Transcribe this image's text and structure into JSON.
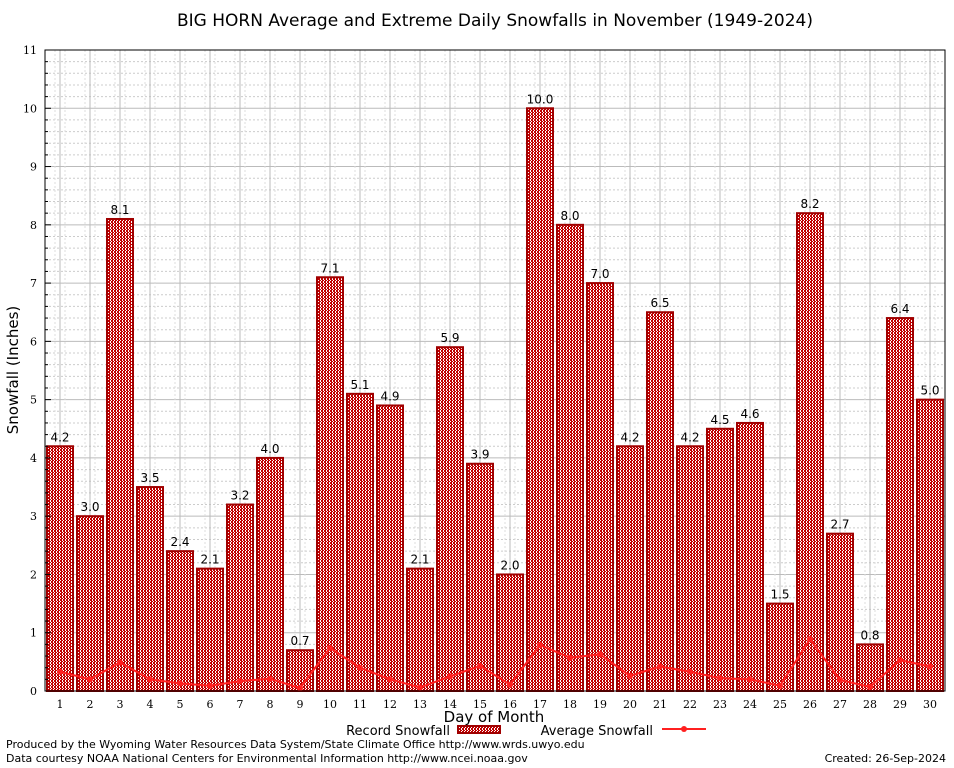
{
  "chart_data": {
    "type": "bar",
    "title": "BIG HORN Average and Extreme Daily Snowfalls in November (1949-2024)",
    "xlabel": "Day of Month",
    "ylabel": "Snowfall (Inches)",
    "ylim": [
      0,
      11
    ],
    "yticks": [
      "0",
      "1",
      "2",
      "3",
      "4",
      "5",
      "6",
      "7",
      "8",
      "9",
      "10",
      "11"
    ],
    "categories": [
      "1",
      "2",
      "3",
      "4",
      "5",
      "6",
      "7",
      "8",
      "9",
      "10",
      "11",
      "12",
      "13",
      "14",
      "15",
      "16",
      "17",
      "18",
      "19",
      "20",
      "21",
      "22",
      "23",
      "24",
      "25",
      "26",
      "27",
      "28",
      "29",
      "30"
    ],
    "series": [
      {
        "name": "Record Snowfall",
        "type": "bar",
        "color": "#a00000",
        "values": [
          4.2,
          3.0,
          8.1,
          3.5,
          2.4,
          2.1,
          3.2,
          4.0,
          0.7,
          7.1,
          5.1,
          4.9,
          2.1,
          5.9,
          3.9,
          2.0,
          10.0,
          8.0,
          7.0,
          4.2,
          6.5,
          4.2,
          4.5,
          4.6,
          1.5,
          8.2,
          2.7,
          0.8,
          6.4,
          5.0
        ],
        "labels": [
          "4.2",
          "3.0",
          "8.1",
          "3.5",
          "2.4",
          "2.1",
          "3.2",
          "4.0",
          "0.7",
          "7.1",
          "5.1",
          "4.9",
          "2.1",
          "5.9",
          "3.9",
          "2.0",
          "10.0",
          "8.0",
          "7.0",
          "4.2",
          "6.5",
          "4.2",
          "4.5",
          "4.6",
          "1.5",
          "8.2",
          "2.7",
          "0.8",
          "6.4",
          "5.0"
        ]
      },
      {
        "name": "Average Snowfall",
        "type": "line",
        "color": "#ff2020",
        "values": [
          0.33,
          0.2,
          0.49,
          0.2,
          0.13,
          0.09,
          0.17,
          0.21,
          0.05,
          0.74,
          0.4,
          0.2,
          0.06,
          0.25,
          0.43,
          0.11,
          0.79,
          0.57,
          0.63,
          0.26,
          0.42,
          0.33,
          0.22,
          0.2,
          0.09,
          0.89,
          0.19,
          0.07,
          0.53,
          0.42
        ]
      }
    ],
    "grid": true,
    "legend": "bottom-center"
  },
  "footer": {
    "line1": "Produced by the Wyoming Water Resources Data System/State Climate Office http://www.wrds.uwyo.edu",
    "line2": "Data courtesy NOAA National Centers for Environmental Information http://www.ncei.noaa.gov",
    "created": "Created: 26-Sep-2024"
  }
}
